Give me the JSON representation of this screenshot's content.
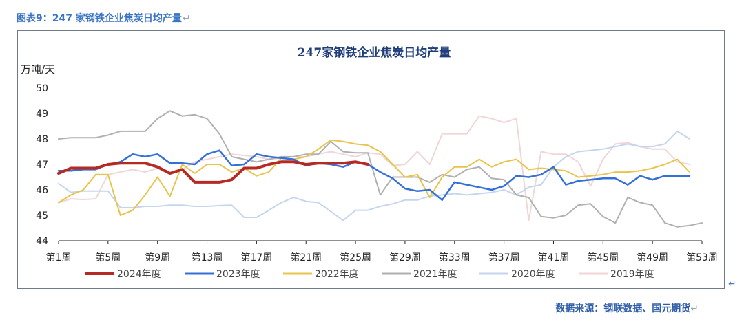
{
  "figure": {
    "caption": "图表9：247 家钢铁企业焦炭日均产量",
    "return_glyph": "↵",
    "source": "数据来源：钢联数据、国元期货"
  },
  "chart_data": {
    "type": "line",
    "title": "247家钢铁企业焦炭日均产量",
    "ylabel": "万吨/天",
    "xlabel": "",
    "ylim": [
      44,
      50
    ],
    "yticks": [
      44,
      45,
      46,
      47,
      48,
      49,
      50
    ],
    "x_count": 53,
    "x_tick_weeks": [
      1,
      5,
      9,
      13,
      17,
      21,
      25,
      29,
      33,
      37,
      41,
      45,
      49,
      53
    ],
    "x_tick_labels": [
      "第1周",
      "第5周",
      "第9周",
      "第13周",
      "第17周",
      "第21周",
      "第25周",
      "第29周",
      "第33周",
      "第37周",
      "第41周",
      "第45周",
      "第49周",
      "第53周"
    ],
    "legend_position": "bottom",
    "series": [
      {
        "name": "2019年度",
        "color": "#f0d6d6",
        "width": 2,
        "values": [
          45.5,
          45.65,
          45.62,
          45.65,
          46.6,
          46.7,
          46.8,
          46.7,
          46.85,
          46.6,
          46.8,
          47.1,
          47.2,
          47.3,
          47.4,
          47.35,
          47.3,
          47.2,
          47.25,
          47.3,
          47.3,
          47.4,
          47.5,
          47.4,
          47.3,
          47.45,
          47.4,
          46.95,
          47.0,
          47.5,
          47.0,
          48.2,
          48.2,
          48.2,
          48.9,
          48.8,
          48.65,
          48.8,
          44.8,
          47.5,
          47.4,
          47.4,
          47.1,
          46.15,
          47.2,
          47.8,
          47.85,
          47.7,
          47.6,
          47.6,
          47.1,
          47.0,
          null
        ]
      },
      {
        "name": "2020年度",
        "color": "#c5d5ee",
        "width": 2,
        "values": [
          46.25,
          45.9,
          45.95,
          45.95,
          45.95,
          45.3,
          45.3,
          45.35,
          45.35,
          45.4,
          45.4,
          45.35,
          45.35,
          45.38,
          45.4,
          44.92,
          44.92,
          45.2,
          45.5,
          45.7,
          45.55,
          45.5,
          45.15,
          44.8,
          45.2,
          45.2,
          45.35,
          45.45,
          45.6,
          45.6,
          45.75,
          45.8,
          45.85,
          45.8,
          45.85,
          45.9,
          46.0,
          45.8,
          46.1,
          46.2,
          46.9,
          47.3,
          47.5,
          47.55,
          47.6,
          47.7,
          47.8,
          47.7,
          47.7,
          47.8,
          48.3,
          48.0,
          null
        ]
      },
      {
        "name": "2021年度",
        "color": "#b0b0b0",
        "width": 2,
        "values": [
          48.0,
          48.05,
          48.05,
          48.05,
          48.15,
          48.3,
          48.3,
          48.3,
          48.8,
          49.1,
          48.9,
          48.95,
          48.8,
          48.2,
          47.3,
          47.2,
          47.1,
          47.2,
          47.3,
          47.3,
          47.4,
          47.4,
          47.9,
          47.5,
          47.45,
          47.45,
          45.8,
          46.5,
          46.5,
          46.5,
          46.3,
          46.6,
          46.5,
          46.8,
          46.9,
          46.45,
          46.4,
          45.8,
          45.7,
          44.95,
          44.9,
          45.0,
          45.4,
          45.45,
          44.95,
          44.7,
          45.7,
          45.5,
          45.4,
          44.7,
          44.55,
          44.6,
          44.7
        ]
      },
      {
        "name": "2022年度",
        "color": "#e8c44a",
        "width": 2,
        "values": [
          45.5,
          45.8,
          46.0,
          46.6,
          46.6,
          45.0,
          45.2,
          45.8,
          46.5,
          45.75,
          47.0,
          46.65,
          47.0,
          47.0,
          46.7,
          46.85,
          46.55,
          46.7,
          47.25,
          47.2,
          47.3,
          47.6,
          47.95,
          47.9,
          47.8,
          47.75,
          47.5,
          47.0,
          46.5,
          46.6,
          45.7,
          46.5,
          46.9,
          46.9,
          47.2,
          46.9,
          47.1,
          47.2,
          46.8,
          46.85,
          46.8,
          46.75,
          46.5,
          46.55,
          46.6,
          46.7,
          46.7,
          46.75,
          46.85,
          47.0,
          47.2,
          46.7,
          null
        ]
      },
      {
        "name": "2023年度",
        "color": "#3570d9",
        "width": 2.5,
        "values": [
          46.75,
          46.75,
          46.8,
          46.8,
          47.0,
          47.1,
          47.4,
          47.3,
          47.4,
          47.05,
          47.05,
          47.0,
          47.4,
          47.55,
          46.95,
          47.0,
          47.4,
          47.3,
          47.25,
          47.2,
          46.95,
          47.05,
          47.0,
          46.9,
          47.1,
          47.0,
          46.7,
          46.45,
          46.05,
          45.95,
          46.0,
          45.6,
          46.3,
          46.2,
          46.1,
          46.0,
          46.15,
          46.55,
          46.5,
          46.6,
          46.9,
          46.2,
          46.35,
          46.4,
          46.45,
          46.45,
          46.2,
          46.55,
          46.4,
          46.55,
          46.55,
          46.55,
          null
        ]
      },
      {
        "name": "2024年度",
        "color": "#b52a22",
        "width": 4,
        "values": [
          46.65,
          46.85,
          46.85,
          46.85,
          47.0,
          47.05,
          47.05,
          47.05,
          46.9,
          46.65,
          46.8,
          46.3,
          46.3,
          46.3,
          46.4,
          46.85,
          46.85,
          47.0,
          47.1,
          47.1,
          47.0,
          47.05,
          47.05,
          47.05,
          47.1,
          47.0,
          null,
          null,
          null,
          null,
          null,
          null,
          null,
          null,
          null,
          null,
          null,
          null,
          null,
          null,
          null,
          null,
          null,
          null,
          null,
          null,
          null,
          null,
          null,
          null,
          null,
          null,
          null
        ]
      }
    ],
    "legend_order": [
      "2024年度",
      "2023年度",
      "2022年度",
      "2021年度",
      "2020年度",
      "2019年度"
    ]
  }
}
